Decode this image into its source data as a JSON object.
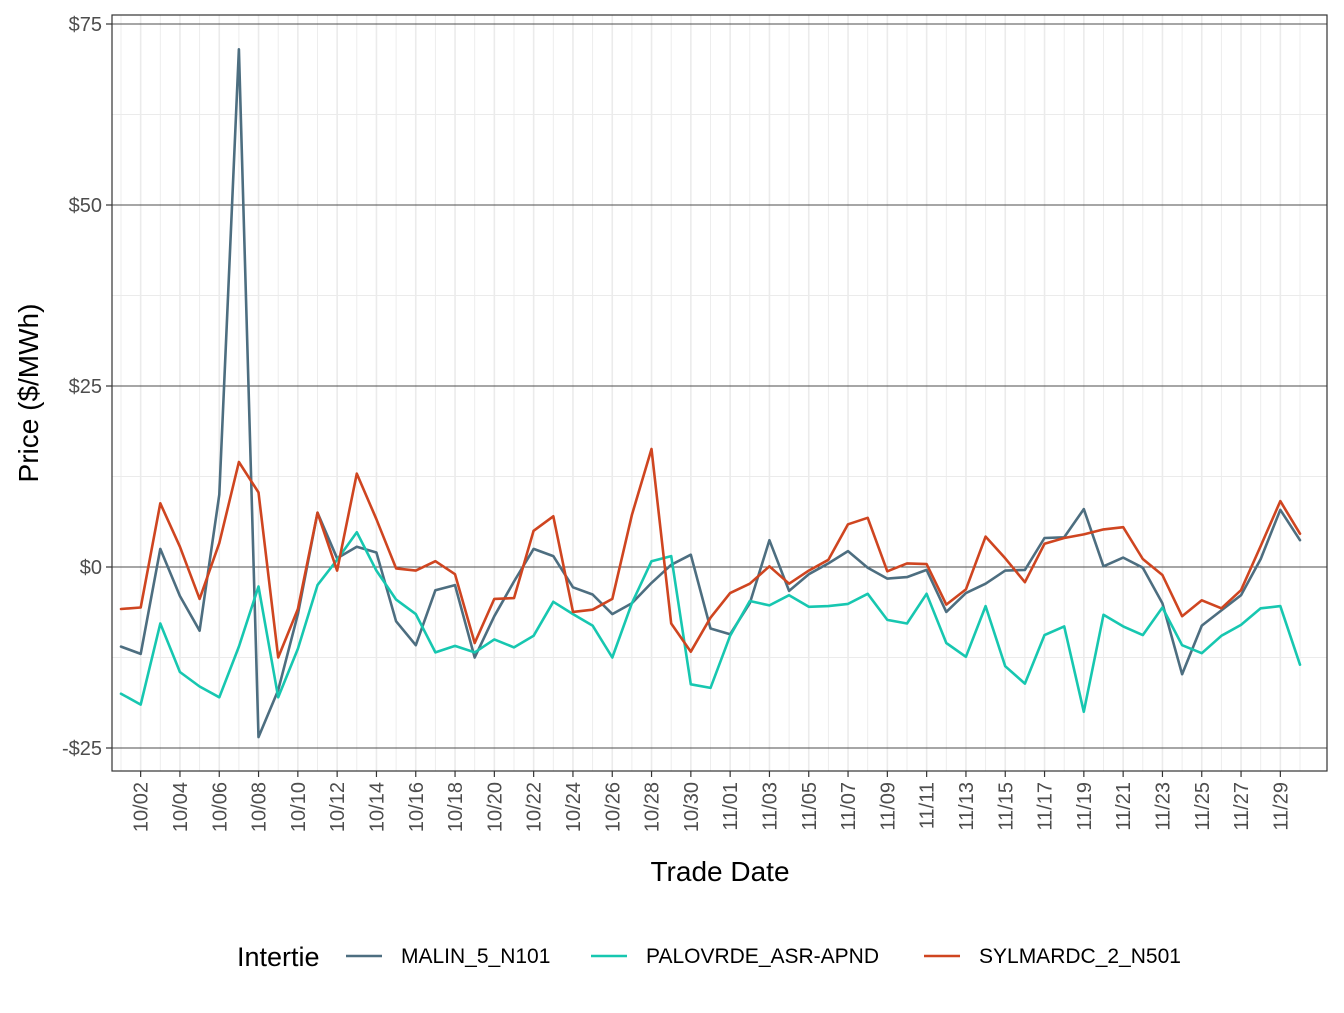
{
  "chart_data": {
    "type": "line",
    "xlabel": "Trade Date",
    "ylabel": "Price ($/MWh)",
    "ylim": [
      -27.5,
      76.5
    ],
    "y_ticks": [
      -25,
      0,
      25,
      50,
      75
    ],
    "y_tick_labels": [
      "-$25",
      "$0",
      "$25",
      "$50",
      "$75"
    ],
    "x_tick_labels": [
      "10/02",
      "10/04",
      "10/06",
      "10/08",
      "10/10",
      "10/12",
      "10/14",
      "10/16",
      "10/18",
      "10/20",
      "10/22",
      "10/24",
      "10/26",
      "10/28",
      "10/30",
      "11/01",
      "11/03",
      "11/05",
      "11/07",
      "11/09",
      "11/11",
      "11/13",
      "11/15",
      "11/17",
      "11/19",
      "11/21",
      "11/23",
      "11/25",
      "11/27",
      "11/29"
    ],
    "x": [
      "10/01",
      "10/02",
      "10/03",
      "10/04",
      "10/05",
      "10/06",
      "10/07",
      "10/08",
      "10/09",
      "10/10",
      "10/11",
      "10/12",
      "10/13",
      "10/14",
      "10/15",
      "10/16",
      "10/17",
      "10/18",
      "10/19",
      "10/20",
      "10/21",
      "10/22",
      "10/23",
      "10/24",
      "10/25",
      "10/26",
      "10/27",
      "10/28",
      "10/29",
      "10/30",
      "10/31",
      "11/01",
      "11/02",
      "11/03",
      "11/04",
      "11/05",
      "11/06",
      "11/07",
      "11/08",
      "11/09",
      "11/10",
      "11/11",
      "11/12",
      "11/13",
      "11/14",
      "11/15",
      "11/16",
      "11/17",
      "11/18",
      "11/19",
      "11/20",
      "11/21",
      "11/22",
      "11/23",
      "11/24",
      "11/25",
      "11/26",
      "11/27",
      "11/28",
      "11/29",
      "11/30"
    ],
    "grid": true,
    "legend": {
      "title": "Intertie",
      "position": "bottom"
    },
    "series": [
      {
        "name": "MALIN_5_N101",
        "color": "#4d6e80",
        "values": [
          -11,
          -12,
          2.5,
          -4,
          -8.8,
          10,
          71.5,
          -23.5,
          -17,
          -6.5,
          7.5,
          1.2,
          2.8,
          2,
          -7.5,
          -10.8,
          -3.2,
          -2.5,
          -12.5,
          -6.8,
          -2,
          2.5,
          1.5,
          -2.8,
          -3.8,
          -6.5,
          -5,
          -2.2,
          0.3,
          1.7,
          -8.5,
          -9.3,
          -5,
          3.7,
          -3.3,
          -1,
          0.5,
          2.2,
          -0.1,
          -1.6,
          -1.4,
          -0.4,
          -6.2,
          -3.6,
          -2.3,
          -0.5,
          -0.4,
          4,
          4.1,
          8,
          0.1,
          1.3,
          -0.1,
          -5,
          -14.8,
          -8.1,
          -6,
          -3.9,
          1.1,
          7.9,
          3.7
        ]
      },
      {
        "name": "PALOVRDE_ASR-APND",
        "color": "#17c7b0",
        "values": [
          -17.5,
          -19,
          -7.8,
          -14.5,
          -16.5,
          -18,
          -11,
          -2.7,
          -18,
          -11.3,
          -2.5,
          1,
          4.8,
          -0.5,
          -4.5,
          -6.5,
          -11.8,
          -10.9,
          -11.8,
          -10,
          -11.1,
          -9.5,
          -4.8,
          -6.5,
          -8.1,
          -12.5,
          -5,
          0.8,
          1.5,
          -16.2,
          -16.7,
          -9.5,
          -4.7,
          -5.3,
          -3.9,
          -5.5,
          -5.4,
          -5.1,
          -3.7,
          -7.3,
          -7.8,
          -3.7,
          -10.5,
          -12.4,
          -5.4,
          -13.7,
          -16.1,
          -9.4,
          -8.2,
          -20,
          -6.6,
          -8.2,
          -9.4,
          -5.6,
          -10.8,
          -11.9,
          -9.5,
          -8,
          -5.7,
          -5.4,
          -13.5
        ]
      },
      {
        "name": "SYLMARDC_2_N501",
        "color": "#cf4520",
        "values": [
          -5.8,
          -5.6,
          8.8,
          2.8,
          -4.4,
          3.3,
          14.5,
          10.3,
          -12.5,
          -5.8,
          7.5,
          -0.5,
          12.9,
          6.6,
          -0.2,
          -0.5,
          0.8,
          -1,
          -10.5,
          -4.4,
          -4.3,
          5,
          7,
          -6.2,
          -5.9,
          -4.4,
          7.2,
          16.3,
          -7.8,
          -11.7,
          -7,
          -3.6,
          -2.3,
          0.1,
          -2.3,
          -0.5,
          1,
          5.9,
          6.8,
          -0.6,
          0.5,
          0.4,
          -5.2,
          -3.1,
          4.2,
          1.2,
          -2.1,
          3.2,
          4,
          4.5,
          5.2,
          5.5,
          1.1,
          -1.1,
          -6.8,
          -4.6,
          -5.7,
          -3.2,
          2.9,
          9.1,
          4.6
        ]
      }
    ]
  }
}
